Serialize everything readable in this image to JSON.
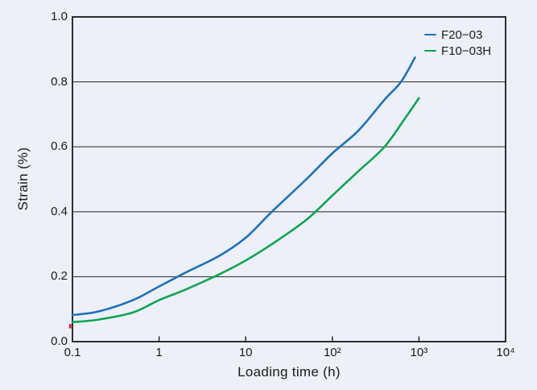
{
  "chart_data": {
    "type": "line",
    "xlabel": "Loading time (h)",
    "ylabel": "Strain (%)",
    "x_scale": "log",
    "xlim": [
      0.1,
      10000
    ],
    "ylim": [
      0.0,
      1.0
    ],
    "x_tick_labels": [
      "0.1",
      "1",
      "10",
      "10²",
      "10³",
      "10⁴"
    ],
    "x_tick_values": [
      0.1,
      1,
      10,
      100,
      1000,
      10000
    ],
    "x_minor_tick_values": [
      1,
      10,
      100,
      1000
    ],
    "y_tick_labels": [
      "0.0",
      "0.2",
      "0.4",
      "0.6",
      "0.8",
      "1.0"
    ],
    "y_tick_values": [
      0.0,
      0.2,
      0.4,
      0.6,
      0.8,
      1.0
    ],
    "y_gridline_values": [
      0.2,
      0.4,
      0.6,
      0.8
    ],
    "grid": "horizontal-only",
    "legend_position": "top-right-inside",
    "series": [
      {
        "name": "F20-03",
        "label": "F20−03",
        "color": "#1c72ba",
        "points": [
          [
            0.1,
            0.082
          ],
          [
            0.2,
            0.093
          ],
          [
            0.5,
            0.128
          ],
          [
            1,
            0.17
          ],
          [
            2,
            0.212
          ],
          [
            5,
            0.265
          ],
          [
            10,
            0.32
          ],
          [
            20,
            0.4
          ],
          [
            50,
            0.5
          ],
          [
            100,
            0.58
          ],
          [
            200,
            0.65
          ],
          [
            400,
            0.745
          ],
          [
            620,
            0.8
          ],
          [
            900,
            0.875
          ]
        ]
      },
      {
        "name": "F10-03H",
        "label": "F10−03H",
        "color": "#0ea551",
        "points": [
          [
            0.1,
            0.06
          ],
          [
            0.2,
            0.068
          ],
          [
            0.5,
            0.09
          ],
          [
            1,
            0.128
          ],
          [
            2,
            0.16
          ],
          [
            5,
            0.208
          ],
          [
            10,
            0.25
          ],
          [
            20,
            0.3
          ],
          [
            50,
            0.375
          ],
          [
            100,
            0.45
          ],
          [
            200,
            0.525
          ],
          [
            400,
            0.6
          ],
          [
            700,
            0.69
          ],
          [
            1000,
            0.75
          ]
        ]
      }
    ],
    "colors": {
      "background": "#edf0f8",
      "axis": "#1a1a1a",
      "grid": "#3c3c3c",
      "text": "#1a1a1a",
      "artifact_red": "#d8232a"
    }
  }
}
